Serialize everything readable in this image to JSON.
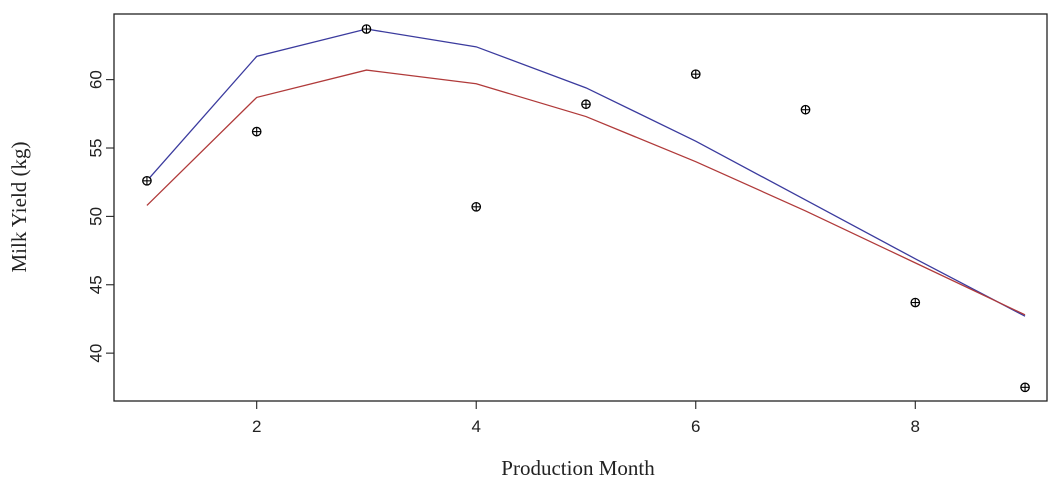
{
  "chart_data": {
    "type": "line",
    "title": "",
    "xlabel": "Production Month",
    "ylabel": "Milk Yield (kg)",
    "xlim": [
      0.7,
      9.2
    ],
    "ylim": [
      36.5,
      64.8
    ],
    "x_ticks": [
      2,
      4,
      6,
      8
    ],
    "y_ticks": [
      40,
      45,
      50,
      55,
      60
    ],
    "grid": false,
    "legend": "none",
    "x": [
      1,
      2,
      3,
      4,
      5,
      6,
      7,
      8,
      9
    ],
    "observed": {
      "style": "scatter",
      "values": [
        52.6,
        56.2,
        63.7,
        50.7,
        58.2,
        60.4,
        57.8,
        43.7,
        37.5
      ]
    },
    "series": [
      {
        "color": "#3b3b9e",
        "values": [
          52.6,
          61.7,
          63.7,
          62.4,
          59.4,
          55.5,
          51.2,
          46.9,
          42.7
        ]
      },
      {
        "color": "#b03a3a",
        "values": [
          50.8,
          58.7,
          60.7,
          59.7,
          57.3,
          54.0,
          50.4,
          46.6,
          42.8
        ]
      }
    ]
  }
}
